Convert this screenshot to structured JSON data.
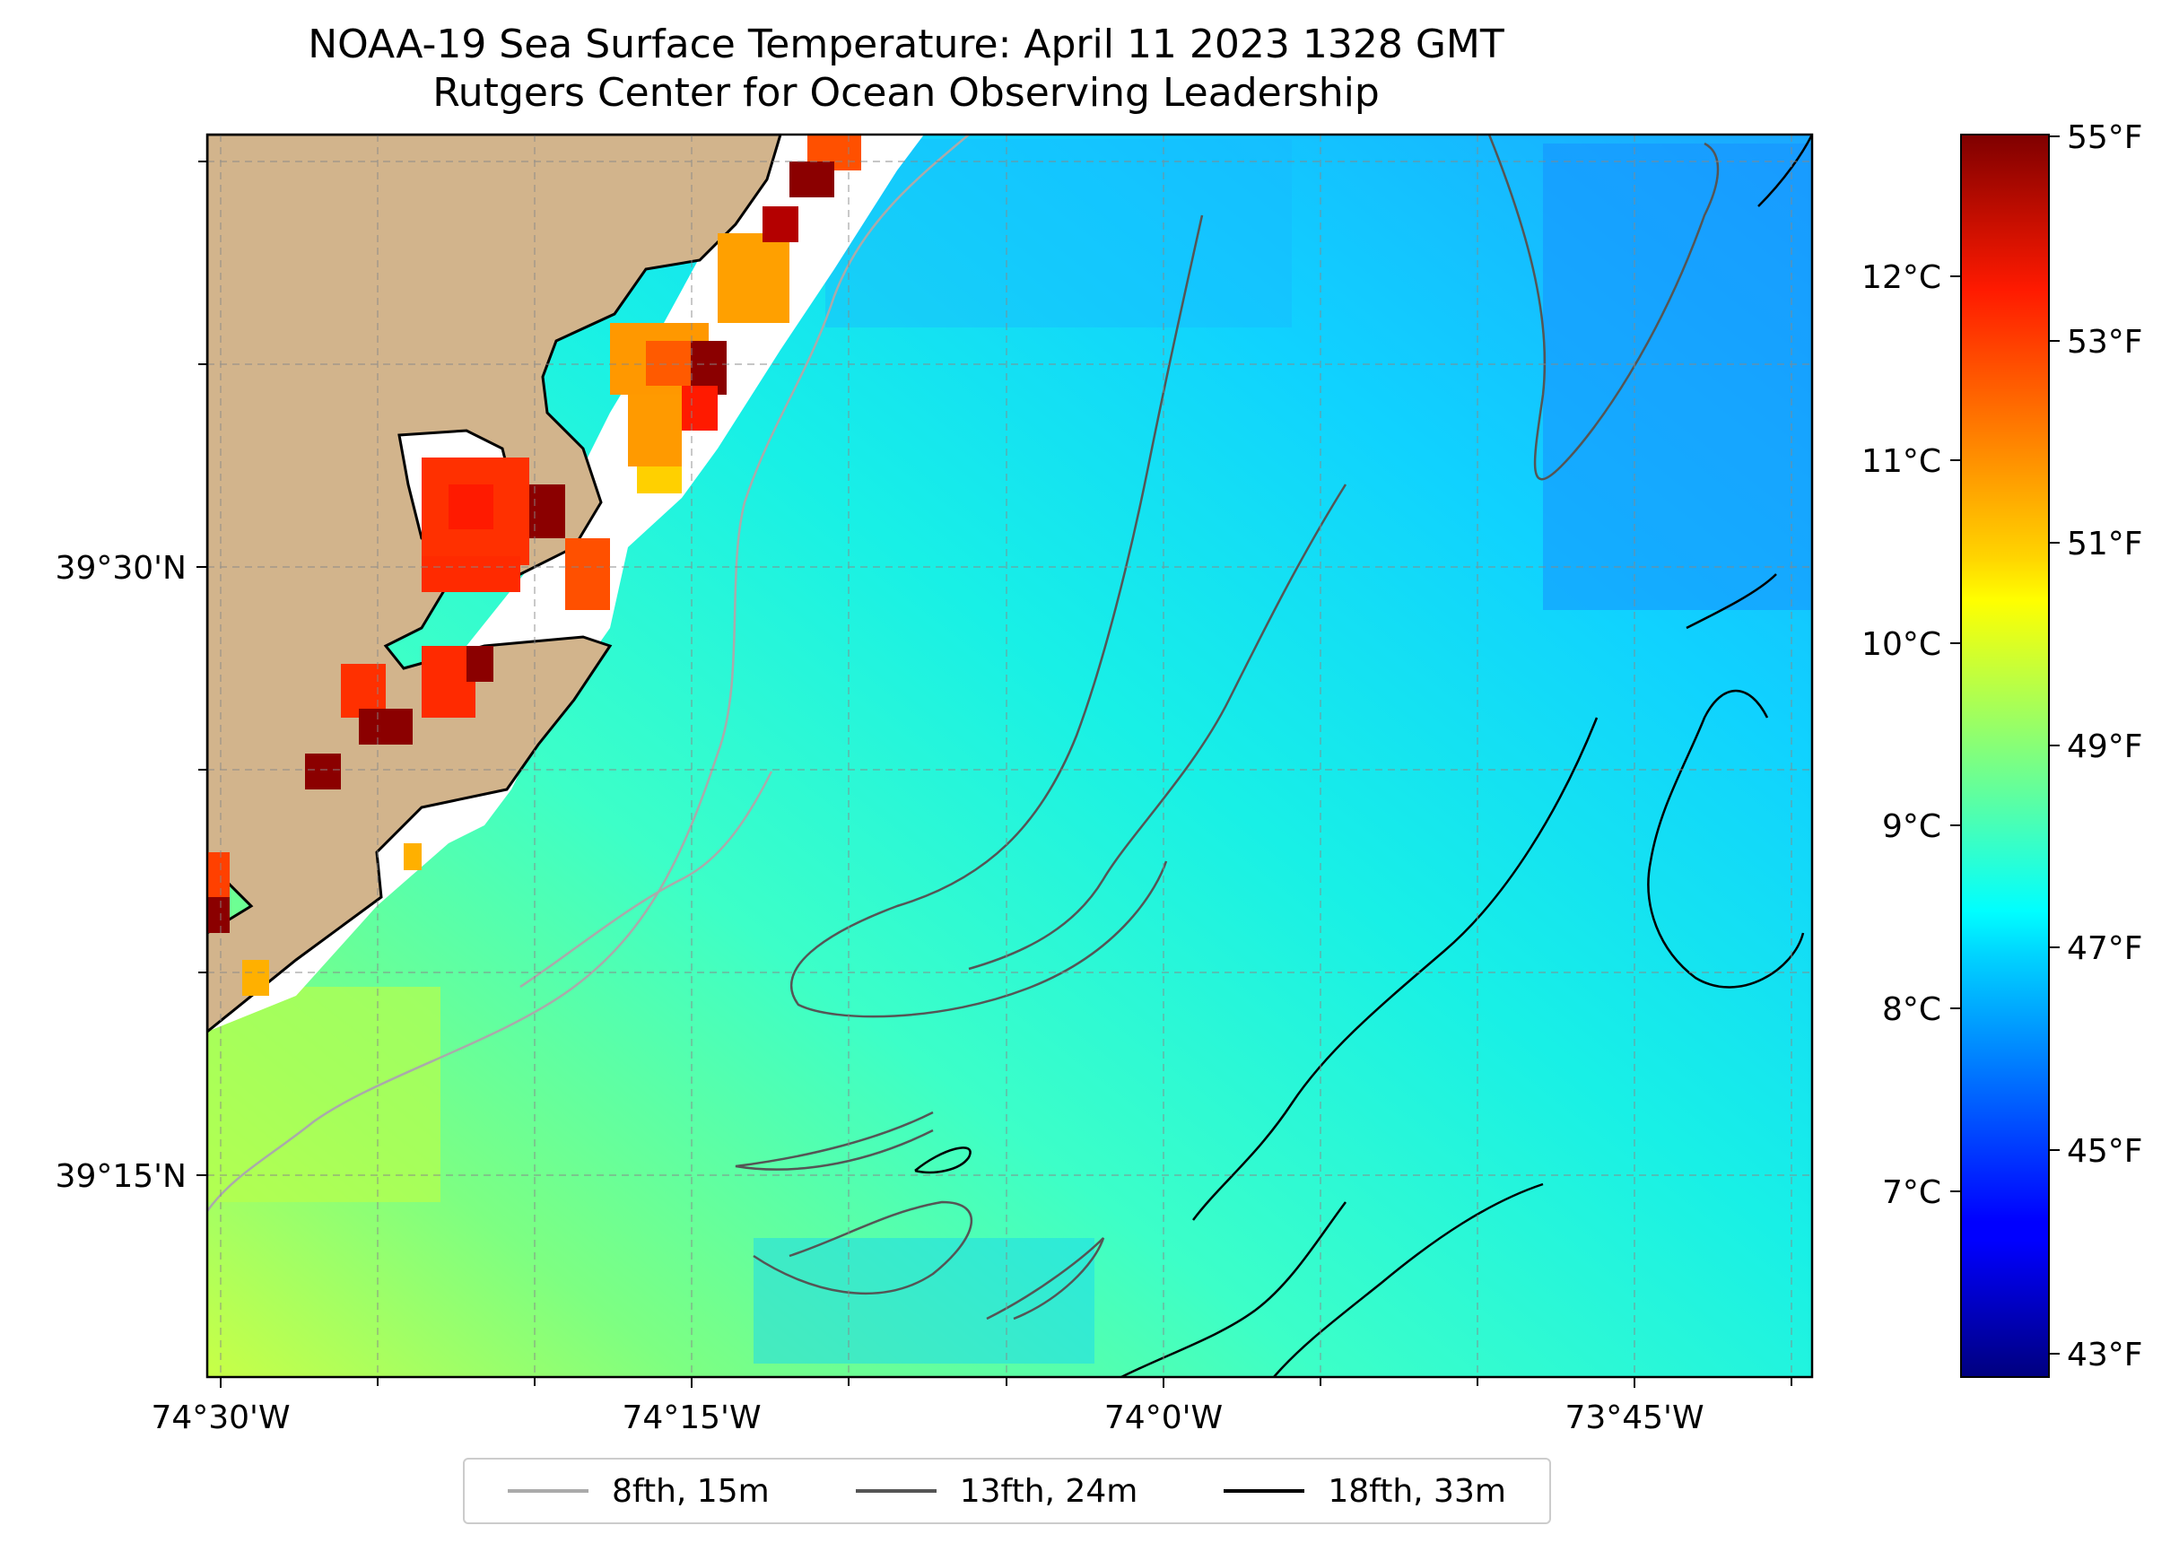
{
  "title": {
    "line1": "NOAA-19 Sea Surface Temperature: April 11 2023 1328 GMT",
    "line2": "Rutgers Center for Ocean Observing Leadership"
  },
  "map": {
    "land_color": "#d2b48c",
    "coast_color": "#000000",
    "grid": "dashed",
    "lon_labels": [
      "74°30'W",
      "74°15'W",
      "74°0'W",
      "73°45'W"
    ],
    "lat_labels": [
      "39°30'N",
      "39°15'N"
    ]
  },
  "colorbar": {
    "colormap": "jet",
    "celsius_labels": [
      "12°C",
      "11°C",
      "10°C",
      "9°C",
      "8°C",
      "7°C"
    ],
    "fahrenheit_labels": [
      "55°F",
      "53°F",
      "51°F",
      "49°F",
      "47°F",
      "45°F",
      "43°F"
    ]
  },
  "legend": {
    "items": [
      {
        "label": "8fth, 15m",
        "color": "#aaaaaa"
      },
      {
        "label": "13fth, 24m",
        "color": "#555555"
      },
      {
        "label": "18fth, 33m",
        "color": "#000000"
      }
    ]
  }
}
